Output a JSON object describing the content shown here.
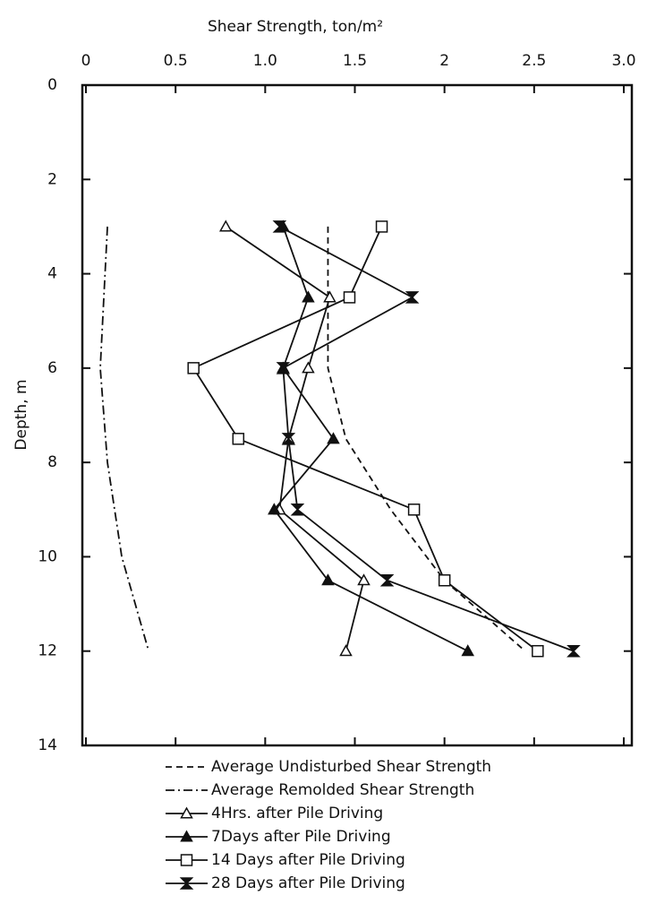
{
  "chart_data": {
    "type": "line",
    "title": "Shear Strength, ton/m²",
    "y_label": "Depth, m",
    "x_axis_position": "top",
    "y_inverted": true,
    "xlim": [
      0,
      3.0
    ],
    "xticks": [
      0,
      0.5,
      {
        "value": 1.0,
        "label": "1.0"
      },
      1.5,
      2,
      2.5,
      {
        "value": 3.0,
        "label": "3.0"
      }
    ],
    "ylim": [
      0,
      14
    ],
    "yticks": [
      0,
      2,
      4,
      6,
      8,
      10,
      12,
      14
    ],
    "series": [
      {
        "name": "Average Undisturbed Shear Strength",
        "color": "#111111",
        "dash": "7,5",
        "marker": "none",
        "x": [
          1.35,
          1.35,
          1.45,
          1.7,
          2.0,
          2.45
        ],
        "y": [
          3,
          6,
          7.5,
          9,
          10.5,
          12
        ]
      },
      {
        "name": "Average Remolded Shear Strength",
        "color": "#111111",
        "dash": "10,4,2,4",
        "marker": "none",
        "x": [
          0.12,
          0.08,
          0.12,
          0.2,
          0.35
        ],
        "y": [
          3,
          6,
          8,
          10,
          12
        ]
      },
      {
        "name": "4Hrs. after Pile Driving",
        "color": "#111111",
        "marker": "open-triangle",
        "x": [
          0.78,
          1.36,
          1.24,
          1.13,
          1.08,
          1.55,
          1.45
        ],
        "y": [
          3,
          4.5,
          6,
          7.5,
          9,
          10.5,
          12
        ]
      },
      {
        "name": "7Days after Pile Driving",
        "color": "#111111",
        "marker": "filled-triangle",
        "x": [
          1.1,
          1.24,
          1.1,
          1.38,
          1.05,
          1.35,
          2.13
        ],
        "y": [
          3,
          4.5,
          6,
          7.5,
          9,
          10.5,
          12
        ]
      },
      {
        "name": "14 Days after Pile Driving",
        "color": "#111111",
        "marker": "open-square",
        "x": [
          1.65,
          1.47,
          0.6,
          0.85,
          1.83,
          2.0,
          2.52
        ],
        "y": [
          3,
          4.5,
          6,
          7.5,
          9,
          10.5,
          12
        ]
      },
      {
        "name": "28 Days after Pile Driving",
        "color": "#111111",
        "marker": "bowtie",
        "x": [
          1.08,
          1.82,
          1.1,
          1.13,
          1.18,
          1.68,
          2.72
        ],
        "y": [
          3,
          4.5,
          6,
          7.5,
          9,
          10.5,
          12
        ]
      }
    ]
  }
}
